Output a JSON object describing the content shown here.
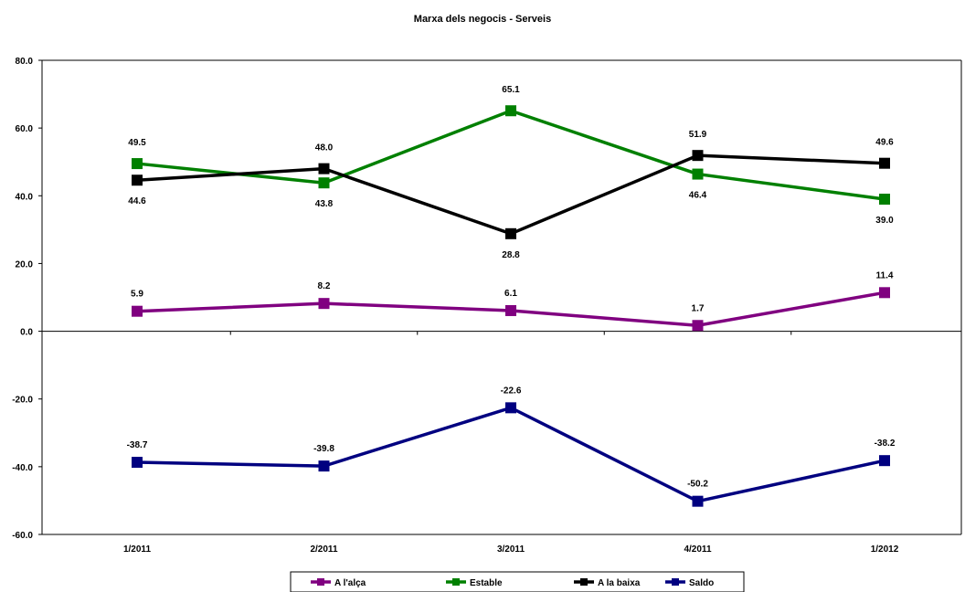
{
  "chart_data": {
    "type": "line",
    "title": "Marxa dels negocis - Serveis",
    "categories": [
      "1/2011",
      "2/2011",
      "3/2011",
      "4/2011",
      "1/2012"
    ],
    "ylim": [
      -60,
      80
    ],
    "yticks": [
      "80.0",
      "60.0",
      "40.0",
      "20.0",
      "0.0",
      "-20.0",
      "-40.0",
      "-60.0"
    ],
    "grid": false,
    "legend_position": "bottom",
    "series": [
      {
        "name": "A l'alça",
        "color": "#800080",
        "values": [
          5.9,
          8.2,
          6.1,
          1.7,
          11.4
        ],
        "labels": [
          "5.9",
          "8.2",
          "6.1",
          "1.7",
          "11.4"
        ]
      },
      {
        "name": "Estable",
        "color": "#008000",
        "values": [
          49.5,
          43.8,
          65.1,
          46.4,
          39.0
        ],
        "labels": [
          "49.5",
          "43.8",
          "65.1",
          "46.4",
          "39.0"
        ]
      },
      {
        "name": "A la baixa",
        "color": "#000000",
        "values": [
          44.6,
          48.0,
          28.8,
          51.9,
          49.6
        ],
        "labels": [
          "44.6",
          "48.0",
          "28.8",
          "51.9",
          "49.6"
        ]
      },
      {
        "name": "Saldo",
        "color": "#000080",
        "values": [
          -38.7,
          -39.8,
          -22.6,
          -50.2,
          -38.2
        ],
        "labels": [
          "-38.7",
          "-39.8",
          "-22.6",
          "-50.2",
          "-38.2"
        ]
      }
    ]
  }
}
